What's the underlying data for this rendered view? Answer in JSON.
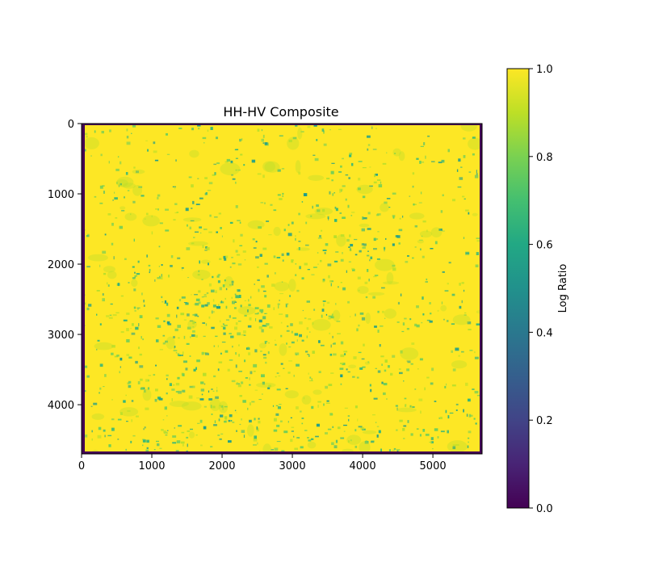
{
  "chart_data": {
    "type": "heatmap",
    "title": "HH-HV Composite",
    "xlim": [
      0,
      5700
    ],
    "ylim": [
      4700,
      0
    ],
    "x_ticks": [
      0,
      1000,
      2000,
      3000,
      4000,
      5000
    ],
    "y_ticks": [
      0,
      1000,
      2000,
      3000,
      4000
    ],
    "x_tick_labels": [
      "0",
      "1000",
      "2000",
      "3000",
      "4000",
      "5000"
    ],
    "y_tick_labels": [
      "0",
      "1000",
      "2000",
      "3000",
      "4000"
    ],
    "colormap": "viridis",
    "colorbar": {
      "label": "Log Ratio",
      "range": [
        0.0,
        1.0
      ],
      "ticks": [
        0.0,
        0.2,
        0.4,
        0.6,
        0.8,
        1.0
      ],
      "tick_labels": [
        "0.0",
        "0.2",
        "0.4",
        "0.6",
        "0.8",
        "1.0"
      ]
    },
    "dominant_value": 1.0,
    "secondary_value_range": [
      0.6,
      0.85
    ],
    "border_value": 0.0,
    "grid": false
  },
  "colors": {
    "yellow": "#fde725",
    "yellow_green": "#b5de2b",
    "green": "#6ece58",
    "teal_green": "#35b779",
    "teal": "#1f9e89",
    "dark": "#440154"
  }
}
